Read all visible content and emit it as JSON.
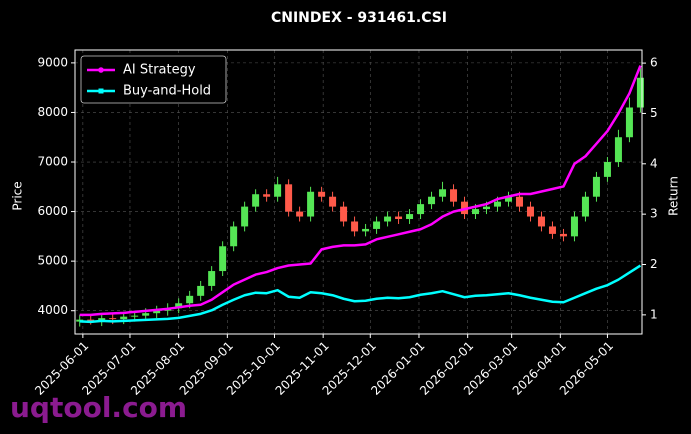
{
  "chart_data": {
    "type": "candlestick",
    "title": "CNINDEX - 931461.CSI",
    "ylabel": "Price",
    "y2label": "Return",
    "x": [
      "2025-05-30",
      "2025-06-06",
      "2025-06-13",
      "2025-06-20",
      "2025-06-27",
      "2025-07-04",
      "2025-07-11",
      "2025-07-18",
      "2025-07-25",
      "2025-08-01",
      "2025-08-08",
      "2025-08-15",
      "2025-08-22",
      "2025-08-29",
      "2025-09-05",
      "2025-09-12",
      "2025-09-19",
      "2025-09-26",
      "2025-10-03",
      "2025-10-10",
      "2025-10-17",
      "2025-10-24",
      "2025-10-31",
      "2025-11-07",
      "2025-11-14",
      "2025-11-21",
      "2025-11-28",
      "2025-12-05",
      "2025-12-12",
      "2025-12-19",
      "2025-12-26",
      "2026-01-02",
      "2026-01-09",
      "2026-01-16",
      "2026-01-23",
      "2026-01-30",
      "2026-02-06",
      "2026-02-13",
      "2026-02-20",
      "2026-02-27",
      "2026-03-06",
      "2026-03-13",
      "2026-03-20",
      "2026-03-27",
      "2026-04-03",
      "2026-04-10",
      "2026-04-17",
      "2026-04-24",
      "2026-05-01",
      "2026-05-08",
      "2026-05-15",
      "2026-05-22"
    ],
    "open": [
      3780,
      3820,
      3790,
      3850,
      3830,
      3880,
      3900,
      3950,
      4000,
      4050,
      4150,
      4300,
      4500,
      4800,
      5300,
      5700,
      6100,
      6350,
      6300,
      6550,
      6000,
      5900,
      6400,
      6300,
      6100,
      5800,
      5600,
      5650,
      5800,
      5900,
      5850,
      5950,
      6150,
      6300,
      6450,
      6200,
      5950,
      6050,
      6100,
      6200,
      6300,
      6100,
      5900,
      5700,
      5550,
      5500,
      5900,
      6300,
      6700,
      7000,
      7500,
      8100
    ],
    "high": [
      3920,
      3920,
      3950,
      3950,
      3980,
      4000,
      4050,
      4100,
      4150,
      4250,
      4400,
      4600,
      4900,
      5400,
      5800,
      6200,
      6450,
      6450,
      6700,
      6650,
      6100,
      6500,
      6500,
      6400,
      6200,
      5900,
      5750,
      5900,
      6000,
      6000,
      6050,
      6250,
      6400,
      6600,
      6550,
      6300,
      6150,
      6200,
      6300,
      6400,
      6400,
      6200,
      6000,
      5800,
      5650,
      6000,
      6400,
      6800,
      7100,
      7650,
      8300,
      8900
    ],
    "low": [
      3680,
      3720,
      3690,
      3730,
      3730,
      3780,
      3800,
      3850,
      3900,
      3950,
      4050,
      4200,
      4400,
      4700,
      5200,
      5600,
      6000,
      6200,
      6200,
      5900,
      5800,
      5800,
      6200,
      6000,
      5700,
      5500,
      5500,
      5550,
      5700,
      5750,
      5750,
      5850,
      6050,
      6200,
      6100,
      5850,
      5850,
      5950,
      6000,
      6100,
      6000,
      5800,
      5600,
      5450,
      5400,
      5400,
      5800,
      6200,
      6600,
      6900,
      7400,
      8000
    ],
    "close": [
      3820,
      3790,
      3850,
      3830,
      3880,
      3900,
      3950,
      4000,
      4050,
      4150,
      4300,
      4500,
      4800,
      5300,
      5700,
      6100,
      6350,
      6300,
      6550,
      6000,
      5900,
      6400,
      6300,
      6100,
      5800,
      5600,
      5650,
      5800,
      5900,
      5850,
      5950,
      6150,
      6300,
      6450,
      6200,
      5950,
      6050,
      6100,
      6200,
      6300,
      6100,
      5900,
      5700,
      5550,
      5500,
      5900,
      6300,
      6700,
      7000,
      7500,
      8100,
      8700
    ],
    "up_color": "#55e655",
    "down_color": "#ff5a4a",
    "series": [
      {
        "name": "AI Strategy",
        "color": "#ff00ff",
        "axis": "y2",
        "marker": "circle",
        "values": [
          1.0,
          1.0,
          1.02,
          1.03,
          1.04,
          1.06,
          1.08,
          1.1,
          1.12,
          1.15,
          1.18,
          1.2,
          1.3,
          1.45,
          1.6,
          1.7,
          1.8,
          1.85,
          1.93,
          1.98,
          2.0,
          2.02,
          2.3,
          2.35,
          2.38,
          2.38,
          2.4,
          2.5,
          2.55,
          2.6,
          2.65,
          2.7,
          2.8,
          2.95,
          3.05,
          3.1,
          3.15,
          3.2,
          3.3,
          3.35,
          3.4,
          3.4,
          3.45,
          3.5,
          3.55,
          4.0,
          4.15,
          4.4,
          4.65,
          5.0,
          5.4,
          5.95
        ]
      },
      {
        "name": "Buy-and-Hold",
        "color": "#00ffff",
        "axis": "y2",
        "marker": "square",
        "values": [
          0.87,
          0.86,
          0.88,
          0.87,
          0.88,
          0.89,
          0.9,
          0.91,
          0.92,
          0.94,
          0.98,
          1.02,
          1.09,
          1.2,
          1.3,
          1.39,
          1.44,
          1.43,
          1.49,
          1.36,
          1.34,
          1.45,
          1.43,
          1.39,
          1.32,
          1.27,
          1.28,
          1.32,
          1.34,
          1.33,
          1.35,
          1.4,
          1.43,
          1.47,
          1.41,
          1.35,
          1.38,
          1.39,
          1.41,
          1.43,
          1.39,
          1.34,
          1.3,
          1.26,
          1.25,
          1.34,
          1.43,
          1.52,
          1.59,
          1.7,
          1.84,
          1.98
        ]
      }
    ],
    "xlim": [
      "2025-05-27",
      "2026-05-23"
    ],
    "xticks": [
      "2025-06-01",
      "2025-07-01",
      "2025-08-01",
      "2025-09-01",
      "2025-10-01",
      "2025-11-01",
      "2025-12-01",
      "2026-01-01",
      "2026-02-01",
      "2026-03-01",
      "2026-04-01",
      "2026-05-01"
    ],
    "ylim": [
      3530,
      9260
    ],
    "yticks": [
      4000,
      5000,
      6000,
      7000,
      8000,
      9000
    ],
    "y2lim": [
      0.62,
      6.26
    ],
    "y2ticks": [
      1,
      2,
      3,
      4,
      5,
      6
    ],
    "grid": true,
    "legend": "upper left"
  },
  "watermark": "uqtool.com"
}
